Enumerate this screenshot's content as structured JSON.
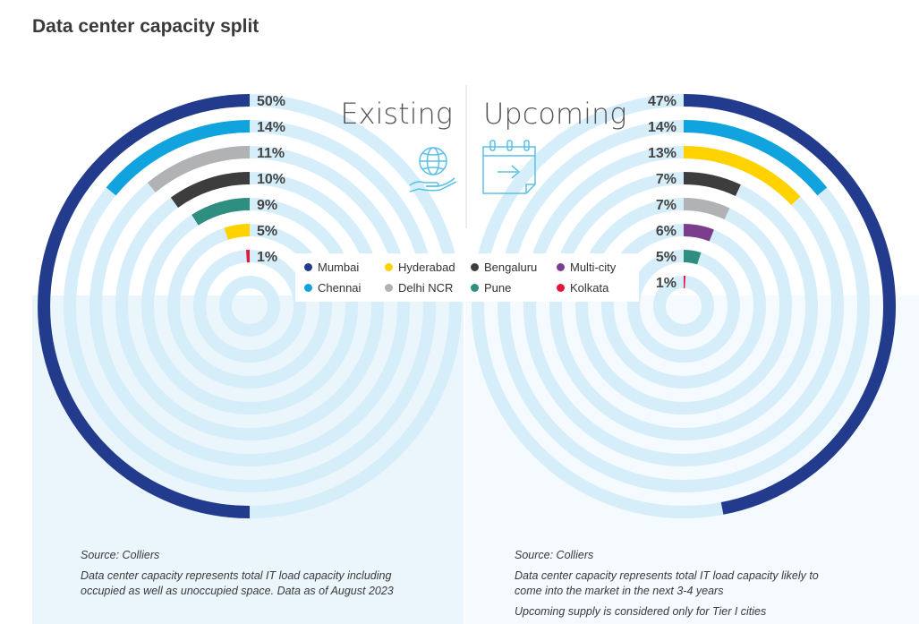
{
  "title": "Data center capacity split",
  "legend": [
    {
      "name": "Mumbai",
      "color": "#233b8c"
    },
    {
      "name": "Hyderabad",
      "color": "#ffd200"
    },
    {
      "name": "Bengaluru",
      "color": "#3d3d3d"
    },
    {
      "name": "Multi-city",
      "color": "#7a3e8c"
    },
    {
      "name": "Chennai",
      "color": "#11a3dd"
    },
    {
      "name": "Delhi NCR",
      "color": "#b0b2b4"
    },
    {
      "name": "Pune",
      "color": "#2e8f80"
    },
    {
      "name": "Kolkata",
      "color": "#e3173e"
    }
  ],
  "chart_data": [
    {
      "type": "radial-bar",
      "title": "Existing",
      "icon": "globe-hand-icon",
      "categories": [
        "Mumbai",
        "Chennai",
        "Delhi NCR",
        "Bengaluru",
        "Pune",
        "Hyderabad",
        "Kolkata"
      ],
      "values": [
        50,
        14,
        11,
        10,
        9,
        5,
        1
      ],
      "labels": [
        "50%",
        "14%",
        "11%",
        "10%",
        "9%",
        "5%",
        "1%"
      ],
      "colors": [
        "#233b8c",
        "#11a3dd",
        "#b0b2b4",
        "#3d3d3d",
        "#2e8f80",
        "#ffd200",
        "#e3173e"
      ],
      "unit": "%",
      "direction": "counter-clockwise"
    },
    {
      "type": "radial-bar",
      "title": "Upcoming",
      "icon": "calendar-arrow-icon",
      "categories": [
        "Mumbai",
        "Chennai",
        "Hyderabad",
        "Bengaluru",
        "Delhi NCR",
        "Multi-city",
        "Pune",
        "Kolkata"
      ],
      "values": [
        47,
        14,
        13,
        7,
        7,
        6,
        5,
        1
      ],
      "labels": [
        "47%",
        "14%",
        "13%",
        "7%",
        "7%",
        "6%",
        "5%",
        "1%"
      ],
      "colors": [
        "#233b8c",
        "#11a3dd",
        "#ffd200",
        "#3d3d3d",
        "#b0b2b4",
        "#7a3e8c",
        "#2e8f80",
        "#e3173e"
      ],
      "unit": "%",
      "direction": "clockwise"
    }
  ],
  "notes": {
    "left": {
      "source": "Source: Colliers",
      "line1": "Data center capacity represents total IT load capacity including",
      "line2": "occupied as well as unoccupied space. Data as of August 2023"
    },
    "right": {
      "source": "Source: Colliers",
      "line1": "Data center capacity represents total IT load capacity likely to",
      "line2": "come into the market in the next 3-4 years",
      "line3": "Upcoming supply is considered only for Tier I cities"
    }
  }
}
